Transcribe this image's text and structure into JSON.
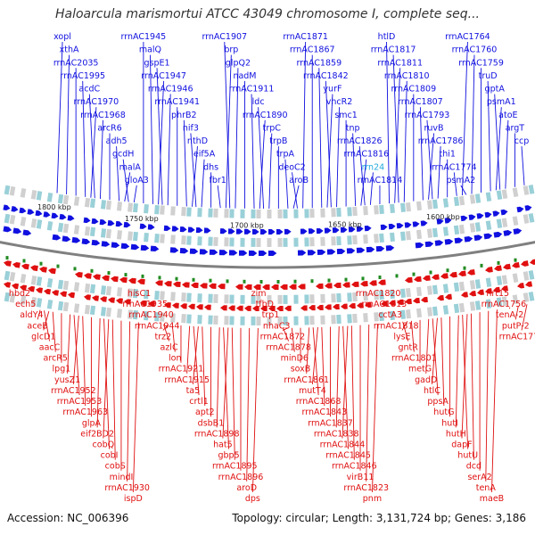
{
  "header": {
    "title": "Haloarcula marismortui ATCC 43049 chromosome I, complete seq..."
  },
  "footer": {
    "accession": "Accession: NC_006396",
    "topology": "Topology: circular; Length: 3,131,724 bp; Genes: 3,186"
  },
  "colors": {
    "forward": "#1010e0",
    "reverse": "#e01010",
    "backbone": "#808080",
    "highlight": "#22aadd"
  },
  "ruler": [
    "1800 kbp",
    "1750 kbp",
    "1700 kbp",
    "1650 kbp",
    "1600 kbp"
  ],
  "forward_genes": [
    "xopl",
    "xthA",
    "rrnAC2035",
    "rrnAC1995",
    "acdC",
    "rrnAC1970",
    "rrnAC1968",
    "arcR6",
    "adh5",
    "gcdH",
    "malA",
    "gloA3",
    "rrnAC1945",
    "malQ",
    "gspE1",
    "rrnAC1947",
    "rrnAC1946",
    "rrnAC1941",
    "phrB2",
    "nif3",
    "nthD",
    "eif5A",
    "dhs",
    "fbr1",
    "rrnAC1907",
    "brp",
    "glpQ2",
    "nadM",
    "rrnAC1911",
    "ldc",
    "rrnAC1890",
    "trpC",
    "trpB",
    "trpA",
    "deoC2",
    "aroB",
    "rrnAC1871",
    "rrnAC1867",
    "rrnAC1859",
    "rrnAC1842",
    "yurF",
    "vhcR2",
    "smc1",
    "tnp",
    "rrnAC1826",
    "rrnAC1816",
    "rrn24",
    "rrnAC1814",
    "htlD",
    "rrnAC1817",
    "rrnAC1811",
    "rrnAC1810",
    "rrnAC1809",
    "rrnAC1807",
    "rrnAC1793",
    "ruvB",
    "rrnAC1786",
    "thi1",
    "rrnAC1774",
    "psmA2",
    "rrnAC1764",
    "rrnAC1760",
    "rrnAC1759",
    "truD",
    "gptA",
    "psmA1",
    "atoE",
    "argT",
    "ccp"
  ],
  "reverse_genes": [
    "hbd2",
    "ech5",
    "aldY4",
    "aceB",
    "glcD1",
    "aacC",
    "arcR5",
    "lpg1",
    "yusZ1",
    "rrnAC1952",
    "rrnAC1953",
    "rrnAC1963",
    "glpA",
    "eif2BD2",
    "cobQ",
    "cobI",
    "cobS",
    "mindI",
    "rrnAC1930",
    "ispD",
    "hisC1",
    "rrnAC1935",
    "rrnAC1940",
    "rrnAC1944",
    "trz2",
    "azlC",
    "lon",
    "rrnAC1921",
    "rrnAC1915",
    "ta5",
    "crtl1",
    "apt2",
    "dsbB1",
    "rrnAC1898",
    "hat5",
    "gbp5",
    "rrnAC1895",
    "rrnAC1896",
    "aroD",
    "dps",
    "zim",
    "tfbD",
    "trp1",
    "nhaC3",
    "rrnAC1872",
    "rrnAC1878",
    "minD6",
    "soxB",
    "rrnAC1861",
    "mutT4",
    "rrnAC1868",
    "rrnAC1843",
    "rrnAC1837",
    "rrnAC1838",
    "rrnAC1844",
    "rrnAC1845",
    "rrnAC1846",
    "virB11",
    "rrnAC1823",
    "pnm",
    "rrnAC1820",
    "rrnAC1813",
    "cctA3",
    "rrnAC1818",
    "lysE",
    "gntR",
    "rrnAC1801",
    "metG",
    "gadD",
    "htlC",
    "ppsA",
    "hutG",
    "hutI",
    "hutH",
    "dapF",
    "hutU",
    "dcd",
    "serA2",
    "tenA",
    "maeB",
    "hrt15",
    "rrnAC1756",
    "tenA-2",
    "putP-2",
    "rrnAC1770"
  ]
}
